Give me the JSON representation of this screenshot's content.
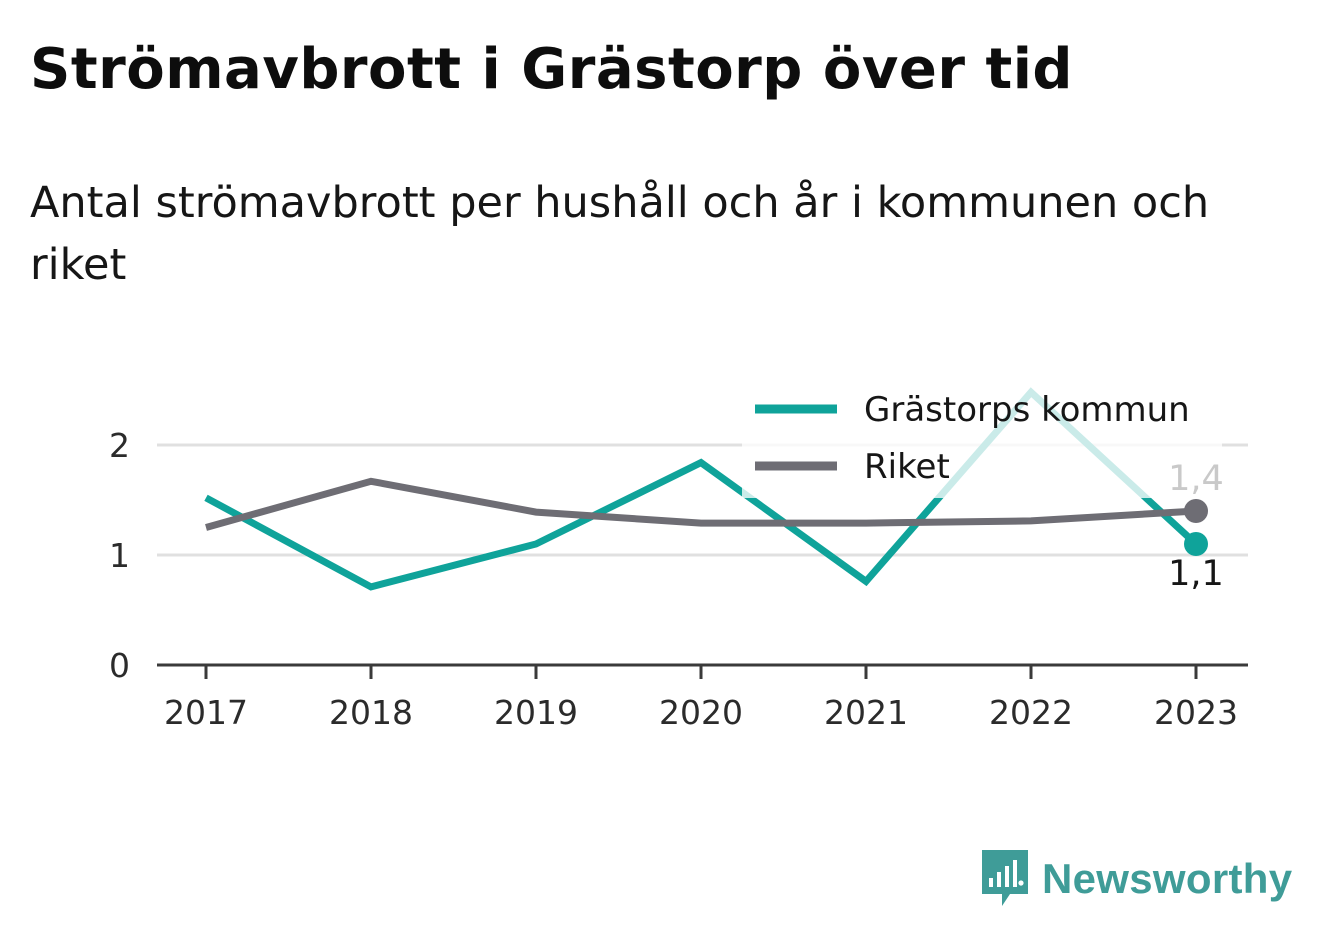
{
  "title": "Strömavbrott i Grästorp över tid",
  "subtitle": "Antal strömavbrott per hushåll och år i kommunen och riket",
  "brand": {
    "name": "Newsworthy",
    "color": "#3f9c98"
  },
  "chart_data": {
    "type": "line",
    "x": [
      "2017",
      "2018",
      "2019",
      "2020",
      "2021",
      "2022",
      "2023"
    ],
    "ylim": [
      0,
      2.5
    ],
    "yticks": [
      0,
      1,
      2
    ],
    "grid": true,
    "legend_position": "top-right",
    "series": [
      {
        "name": "Grästorps kommun",
        "color": "#0fa39a",
        "values": [
          1.52,
          0.71,
          1.1,
          1.84,
          0.76,
          2.48,
          1.1
        ],
        "end_label": "1,1"
      },
      {
        "name": "Riket",
        "color": "#6e6d74",
        "values": [
          1.25,
          1.67,
          1.39,
          1.29,
          1.29,
          1.31,
          1.4
        ],
        "end_label": "1,4"
      }
    ]
  }
}
